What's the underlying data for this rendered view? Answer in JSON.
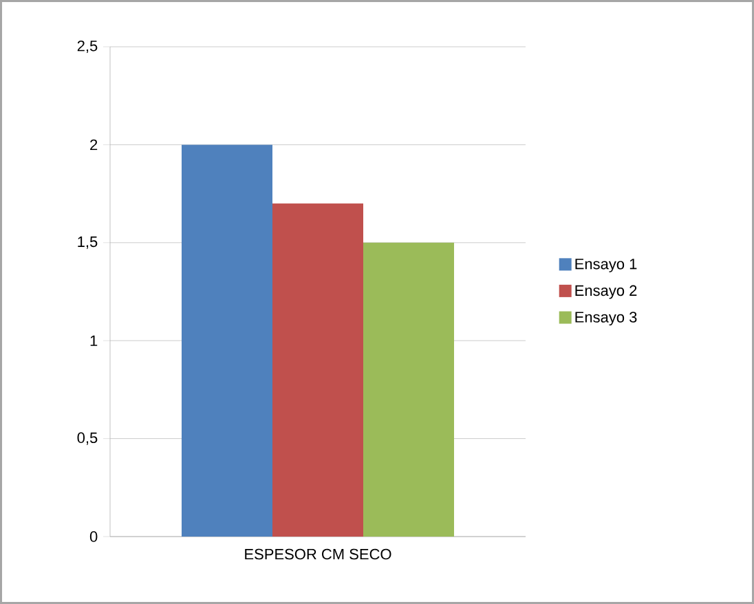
{
  "chart_data": {
    "type": "bar",
    "categories": [
      "ESPESOR CM SECO"
    ],
    "series": [
      {
        "name": "Ensayo 1",
        "color": "#4f81bd",
        "values": [
          2
        ]
      },
      {
        "name": "Ensayo 2",
        "color": "#c0504d",
        "values": [
          1.7
        ]
      },
      {
        "name": "Ensayo 3",
        "color": "#9bbb59",
        "values": [
          1.5
        ]
      }
    ],
    "ylim": [
      0,
      2.5
    ],
    "yticks": [
      0,
      {
        "value": 0.5,
        "label": "0,5"
      },
      1,
      {
        "value": 1.5,
        "label": "1,5"
      },
      2,
      {
        "value": 2.5,
        "label": "2,5"
      }
    ],
    "grid": "y",
    "legend": "right"
  }
}
